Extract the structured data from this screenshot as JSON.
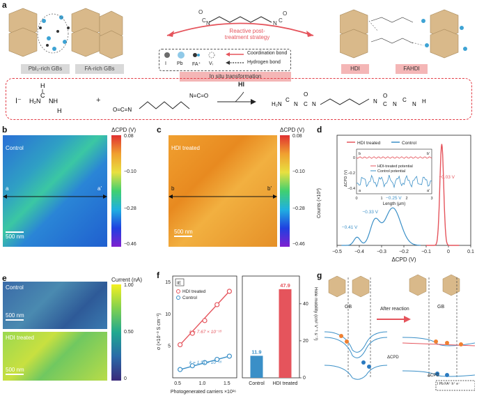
{
  "panels": {
    "a": "a",
    "b": "b",
    "c": "c",
    "d": "d",
    "e": "e",
    "f": "f",
    "g": "g"
  },
  "panel_a": {
    "strategy_title": "Reactive post-",
    "strategy_title2": "treatment strategy",
    "legend": {
      "i": "I",
      "pb": "Pb",
      "fa": "FA⁺",
      "vi": "Vᵢ",
      "coordination": "Coordination bond",
      "hydrogen": "Hydrogen bond"
    },
    "tags": {
      "pbi2": "PbI₂-rich GBs",
      "fa_rich": "FA-rich GBs",
      "in_situ": "In situ transformation",
      "hdi": "HDI",
      "fahdi": "FAHDI"
    },
    "reaction": {
      "iodide": "I⁻",
      "plus": "+",
      "hi": "HI"
    },
    "colors": {
      "accent": "#e5545c",
      "dash": "#e23a44"
    }
  },
  "panel_b": {
    "label": "Control",
    "scale": "500 nm",
    "line_start": "a",
    "line_end": "a'",
    "colorbar_title": "ΔCPD (V)",
    "ticks": [
      "0.08",
      "−0.10",
      "−0.28",
      "−0.46"
    ]
  },
  "panel_c": {
    "label": "HDI treated",
    "scale": "500 nm",
    "line_start": "b",
    "line_end": "b'",
    "colorbar_title": "ΔCPD (V)",
    "ticks": [
      "0.08",
      "−0.10",
      "−0.28",
      "−0.46"
    ]
  },
  "panel_e": {
    "label_top": "Control",
    "label_bottom": "HDI treated",
    "scale_top": "500 nm",
    "scale_bottom": "500 nm",
    "colorbar_title": "Current (nA)",
    "ticks": [
      "1.00",
      "0.50",
      "0"
    ]
  },
  "panel_g": {
    "gb_left": "GB",
    "gb_right": "GB",
    "after": "After reaction",
    "dcpd1": "ΔCPD",
    "dcpd2": "ΔCPD",
    "legend_i": "I",
    "legend_pb": "Pb",
    "legend_fa": "FA⁺",
    "legend_h": "h⁺",
    "legend_e": "e⁻"
  },
  "chart_data": [
    {
      "type": "line",
      "id": "panel_d",
      "xlabel": "ΔCPD (V)",
      "ylabel": "Counts (×10³)",
      "xlim": [
        -0.5,
        0.1
      ],
      "xticks": [
        "−0.5",
        "−0.4",
        "−0.3",
        "−0.2",
        "−0.1",
        "0",
        "0.1"
      ],
      "series": [
        {
          "name": "HDI treated",
          "color": "#e5545c",
          "peak": -0.03
        },
        {
          "name": "Control",
          "color": "#3a8fc7",
          "peaks": [
            -0.41,
            -0.33,
            -0.25
          ]
        }
      ],
      "annotations": [
        "−0.03 V",
        "−0.25 V",
        "−0.33 V",
        "−0.41 V"
      ],
      "inset": {
        "xlabel": "Length (μm)",
        "ylabel": "ΔCPD (V)",
        "xticks": [
          "0",
          "1",
          "2",
          "3"
        ],
        "yticks": [
          "0",
          "−0.2",
          "−0.4"
        ],
        "legend": [
          "HDI-treated potential",
          "Control potential"
        ],
        "corner_labels": [
          "b",
          "b'",
          "a",
          "a'"
        ]
      }
    },
    {
      "type": "scatter",
      "id": "panel_f_left",
      "xlabel": "Photogenerated carriers ×10¹⁶",
      "ylabel": "σ (×10⁻³ S cm⁻¹)",
      "xticks": [
        "0.5",
        "1.0",
        "1.5"
      ],
      "yticks": [
        "5",
        "10",
        "15"
      ],
      "ylim": [
        0,
        16
      ],
      "xlim": [
        0.4,
        1.7
      ],
      "badge": "IE",
      "series": [
        {
          "name": "HDI treated",
          "color": "#e5545c",
          "x": [
            0.55,
            0.8,
            1.05,
            1.3,
            1.55
          ],
          "y": [
            5.2,
            7.0,
            9.0,
            11.5,
            13.6
          ],
          "fit_label": "k = 7.67 × 10⁻¹⁸"
        },
        {
          "name": "Control",
          "color": "#3a8fc7",
          "x": [
            0.55,
            0.8,
            1.05,
            1.3,
            1.55
          ],
          "y": [
            1.3,
            1.9,
            2.4,
            2.9,
            3.4
          ],
          "fit_label": "k = 1.91 × 10⁻¹⁸"
        }
      ]
    },
    {
      "type": "bar",
      "id": "panel_f_right",
      "ylabel": "Hole mobility (cm² V⁻¹ s⁻¹)",
      "categories": [
        "Control",
        "HDI treated"
      ],
      "values": [
        11.9,
        47.9
      ],
      "value_labels": [
        "11.9",
        "47.9"
      ],
      "colors": [
        "#3a8fc7",
        "#e5545c"
      ],
      "ylim": [
        0,
        55
      ],
      "yticks": [
        "0",
        "20",
        "40"
      ]
    }
  ]
}
